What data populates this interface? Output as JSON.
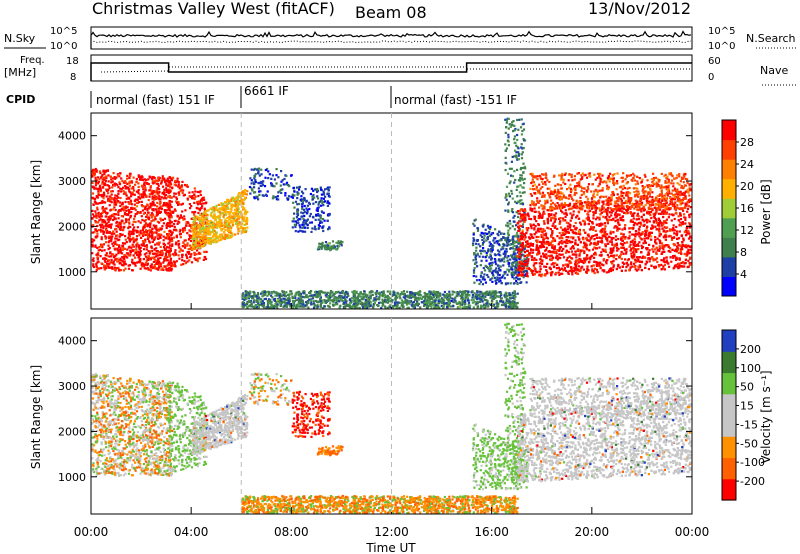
{
  "header": {
    "title": "Christmas Valley West (fitACF)",
    "beam": "Beam 08",
    "date": "13/Nov/2012"
  },
  "top_panels": {
    "nsky_label": "N.Sky",
    "nsearch_label": "N.Search",
    "noise_ticks": [
      "10^5",
      "10^0"
    ],
    "freq_label": "Freq.",
    "freq_unit": "[MHz]",
    "freq_ticks": [
      "18",
      "8"
    ],
    "nave_label": "Nave",
    "nave_ticks": [
      "60",
      "0"
    ],
    "cpid_label": "CPID",
    "cpid_segments": [
      {
        "label": "normal (fast) 151 IF",
        "start_h": 0.0
      },
      {
        "label": "6661 IF",
        "start_h": 6.0
      },
      {
        "label": "normal (fast) -151 IF",
        "start_h": 12.0
      }
    ]
  },
  "chart_data": [
    {
      "type": "heatmap",
      "title": "",
      "ylabel": "Slant Range [km]",
      "xlabel": "",
      "ylim": [
        180,
        4500
      ],
      "xlim": [
        0,
        24
      ],
      "yticks": [
        "1000",
        "2000",
        "3000",
        "4000"
      ],
      "colorbar": {
        "label": "Power [dB]",
        "tick_labels": [
          "4",
          "8",
          "12",
          "16",
          "20",
          "24",
          "28"
        ],
        "range": [
          0,
          30
        ]
      }
    },
    {
      "type": "heatmap",
      "title": "",
      "ylabel": "Slant Range [km]",
      "xlabel": "Time UT",
      "ylim": [
        180,
        4500
      ],
      "xlim": [
        0,
        24
      ],
      "yticks": [
        "1000",
        "2000",
        "3000",
        "4000"
      ],
      "xticks": [
        "00:00",
        "04:00",
        "08:00",
        "12:00",
        "16:00",
        "20:00",
        "00:00"
      ],
      "colorbar": {
        "label": "Velocity [m s⁻¹]",
        "tick_labels": [
          "200",
          "100",
          "50",
          "15",
          "-15",
          "-50",
          "-100",
          "-200"
        ]
      }
    }
  ],
  "colors": {
    "power_scale": [
      "#0000ff",
      "#1d3fa6",
      "#3f7f4c",
      "#4f9e52",
      "#a0cc38",
      "#ffb000",
      "#ff8000",
      "#ff4000",
      "#ff0000"
    ],
    "velocity_scale": [
      "#2040c0",
      "#3a7b30",
      "#66c23a",
      "#c6c6c6",
      "#c6c6c6",
      "#ff9000",
      "#ff6000",
      "#ff0000"
    ]
  }
}
